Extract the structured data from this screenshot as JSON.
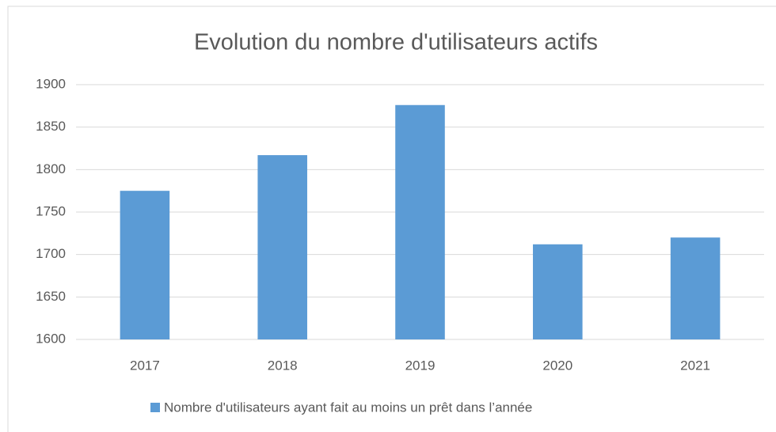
{
  "chart_data": {
    "type": "bar",
    "title": "Evolution du nombre d'utilisateurs actifs",
    "categories": [
      "2017",
      "2018",
      "2019",
      "2020",
      "2021"
    ],
    "series": [
      {
        "name": "Nombre d'utilisateurs ayant fait au moins un prêt dans l’année",
        "color": "#5b9bd5",
        "values": [
          1775,
          1817,
          1876,
          1712,
          1720
        ]
      }
    ],
    "ylim": [
      1600,
      1900
    ],
    "yticks": [
      1600,
      1650,
      1700,
      1750,
      1800,
      1850,
      1900
    ],
    "grid": true,
    "legend": "bottom"
  }
}
